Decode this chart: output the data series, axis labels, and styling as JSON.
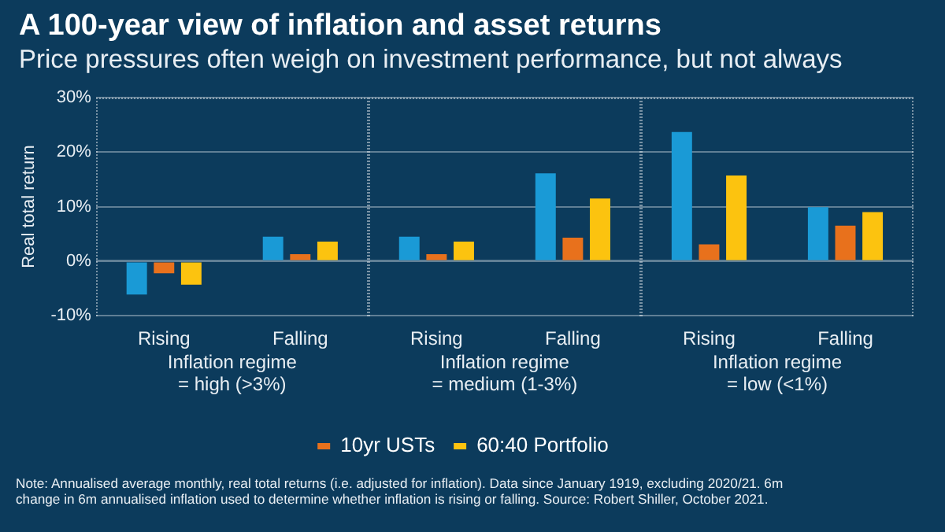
{
  "chart_data": {
    "type": "bar",
    "title": "A 100-year view of inflation and asset returns",
    "subtitle": "Price pressures often weigh on investment performance, but not always",
    "ylabel": "Real total return",
    "categories": [
      "Rising",
      "Falling",
      "Rising",
      "Falling",
      "Rising",
      "Falling"
    ],
    "series": [
      {
        "color": "#1a9ad6",
        "values": [
          -6.1,
          4.5,
          4.5,
          16.1,
          23.7,
          9.9
        ]
      },
      {
        "name": "10yr USTs",
        "color": "#e8711c",
        "values": [
          -2.2,
          1.3,
          1.3,
          4.3,
          3.1,
          6.5
        ]
      },
      {
        "name": "60:40 Portfolio",
        "color": "#fcc30f",
        "values": [
          -4.3,
          3.6,
          3.6,
          11.5,
          15.7,
          9.0
        ]
      }
    ],
    "ylim": [
      -10,
      30
    ],
    "yticks": [
      {
        "value": -10,
        "label": "-10%"
      },
      {
        "value": 0,
        "label": "0%"
      },
      {
        "value": 10,
        "label": "10%"
      },
      {
        "value": 20,
        "label": "20%"
      },
      {
        "value": 30,
        "label": "30%"
      }
    ],
    "grid": "y",
    "legend": "bottom",
    "annotations": [
      "Inflation regime\n= high (>3%)",
      "Inflation regime\n= medium (1-3%)",
      "Inflation regime\n= low (<1%)",
      "Note: Annualised average monthly, real total returns (i.e. adjusted for inflation). Data since January 1919, excluding 2020/21. 6m change in 6m annualised inflation used to determine whether inflation is rising or falling. Source: Robert Shiller, October 2021."
    ]
  }
}
